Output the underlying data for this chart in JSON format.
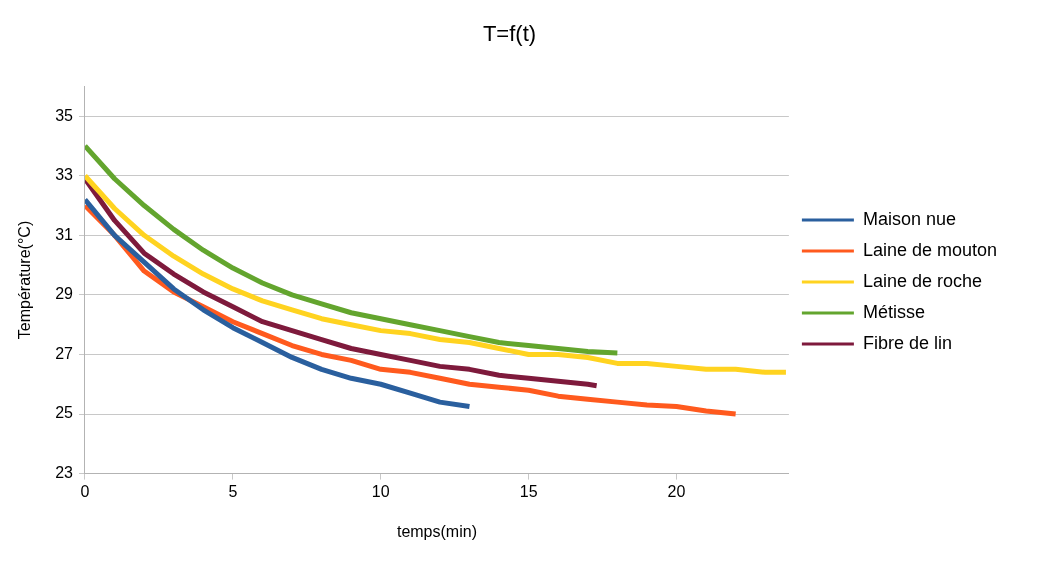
{
  "chart_data": {
    "type": "line",
    "title": "T=f(t)",
    "xlabel": "temps(min)",
    "ylabel": "Température(°C)",
    "xlim": [
      0,
      23.8
    ],
    "xticks": [
      0,
      5,
      10,
      15,
      20
    ],
    "ylim": [
      23,
      36
    ],
    "yticks": [
      23,
      25,
      27,
      29,
      31,
      33,
      35
    ],
    "grid": "y",
    "legend": "right",
    "marker": "none",
    "line_style": "solid",
    "series": [
      {
        "name": "Maison nue",
        "color": "#2a5f9e",
        "x": [
          0,
          1,
          2,
          3,
          4,
          5,
          6,
          7,
          8,
          9,
          10,
          11,
          12,
          13
        ],
        "values": [
          32.2,
          31.0,
          30.1,
          29.2,
          28.5,
          27.9,
          27.4,
          26.9,
          26.5,
          26.2,
          26.0,
          25.7,
          25.4,
          25.25
        ]
      },
      {
        "name": "Laine de mouton",
        "color": "#ff5a1e",
        "x": [
          0,
          1,
          2,
          3,
          4,
          5,
          6,
          7,
          8,
          9,
          10,
          11,
          12,
          13,
          14,
          15,
          16,
          17,
          18,
          19,
          20,
          21,
          22
        ],
        "values": [
          32.0,
          31.0,
          29.8,
          29.1,
          28.6,
          28.1,
          27.7,
          27.3,
          27.0,
          26.8,
          26.5,
          26.4,
          26.2,
          26.0,
          25.9,
          25.8,
          25.6,
          25.5,
          25.4,
          25.3,
          25.25,
          25.1,
          25.0
        ]
      },
      {
        "name": "Laine de roche",
        "color": "#ffd320",
        "x": [
          0,
          1,
          2,
          3,
          4,
          5,
          6,
          7,
          8,
          9,
          10,
          11,
          12,
          13,
          14,
          15,
          16,
          17,
          18,
          19,
          20,
          21,
          22,
          23,
          23.7
        ],
        "values": [
          33.0,
          31.9,
          31.0,
          30.3,
          29.7,
          29.2,
          28.8,
          28.5,
          28.2,
          28.0,
          27.8,
          27.7,
          27.5,
          27.4,
          27.2,
          27.0,
          27.0,
          26.9,
          26.7,
          26.7,
          26.6,
          26.5,
          26.5,
          26.4,
          26.4
        ]
      },
      {
        "name": "Métisse",
        "color": "#63a52e",
        "x": [
          0,
          1,
          2,
          3,
          4,
          5,
          6,
          7,
          8,
          9,
          10,
          11,
          12,
          13,
          14,
          15,
          16,
          17,
          18
        ],
        "values": [
          34.0,
          32.9,
          32.0,
          31.2,
          30.5,
          29.9,
          29.4,
          29.0,
          28.7,
          28.4,
          28.2,
          28.0,
          27.8,
          27.6,
          27.4,
          27.3,
          27.2,
          27.1,
          27.05
        ]
      },
      {
        "name": "Fibre de lin",
        "color": "#7e1a3c",
        "x": [
          0,
          1,
          2,
          3,
          4,
          5,
          6,
          7,
          8,
          9,
          10,
          11,
          12,
          13,
          14,
          15,
          16,
          17,
          17.3
        ],
        "values": [
          32.9,
          31.5,
          30.4,
          29.7,
          29.1,
          28.6,
          28.1,
          27.8,
          27.5,
          27.2,
          27.0,
          26.8,
          26.6,
          26.5,
          26.3,
          26.2,
          26.1,
          26.0,
          25.95
        ]
      }
    ]
  }
}
